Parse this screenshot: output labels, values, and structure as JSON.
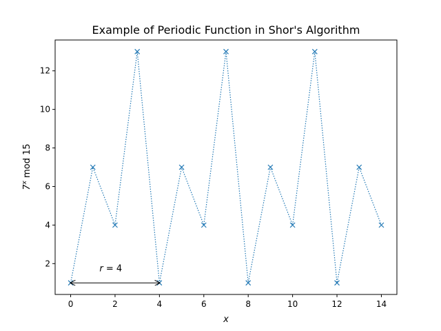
{
  "chart_data": {
    "type": "line",
    "title": "Example of Periodic Function in Shor's Algorithm",
    "xlabel": "x",
    "ylabel_base": "7",
    "ylabel_exp": "x",
    "ylabel_rest": " mod 15",
    "xlim": [
      -0.7,
      14.7
    ],
    "ylim": [
      0.4,
      13.6
    ],
    "xticks": [
      0,
      2,
      4,
      6,
      8,
      10,
      12,
      14
    ],
    "yticks": [
      2,
      4,
      6,
      8,
      10,
      12
    ],
    "grid": false,
    "series": [
      {
        "x": [
          0,
          1,
          2,
          3,
          4,
          5,
          6,
          7,
          8,
          9,
          10,
          11,
          12,
          13,
          14
        ],
        "y": [
          1,
          7,
          4,
          13,
          1,
          7,
          4,
          13,
          1,
          7,
          4,
          13,
          1,
          7,
          4
        ],
        "color": "#1f77b4",
        "marker": "x",
        "linestyle": "dotted"
      }
    ],
    "annotation": {
      "label_italic": "r",
      "label_rest": " = 4",
      "x_from": 0,
      "x_to": 4,
      "y": 1,
      "text_x": 1.3,
      "text_y": 1.6
    }
  }
}
